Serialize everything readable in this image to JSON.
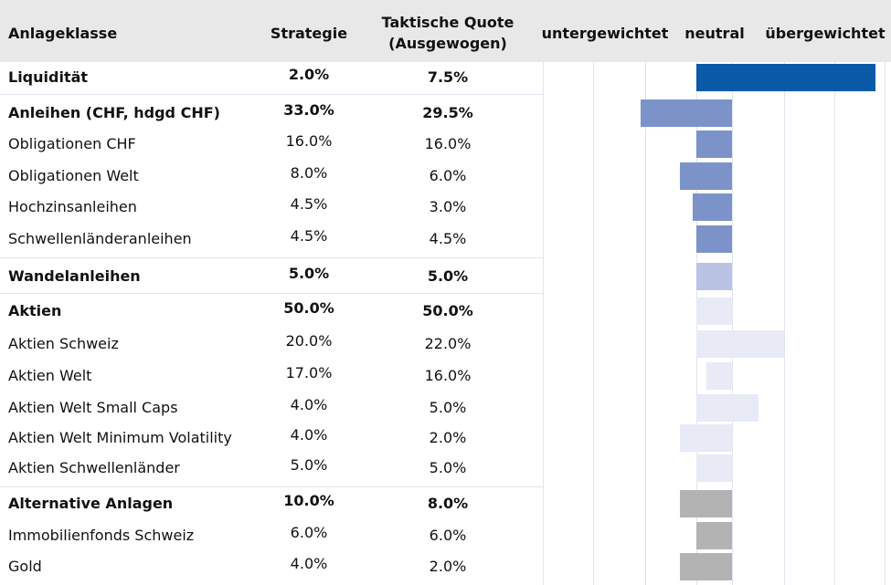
{
  "header": {
    "asset_class": "Anlageklasse",
    "strategy": "Strategie",
    "tactical": "Taktische Quote",
    "tactical_sub": "(Ausgewogen)",
    "under": "untergewichtet",
    "neutral": "neutral",
    "over": "übergewichtet"
  },
  "rows": [
    {
      "name": "Liquidität",
      "bold": true,
      "strategy": 2.0,
      "strategy_label": "2.0%",
      "tactical": 7.5,
      "tactical_label": "7.5%",
      "color": "#0a5aa8"
    },
    {
      "name": "Anleihen (CHF, hdgd CHF)",
      "bold": true,
      "strategy": 33.0,
      "strategy_label": "33.0%",
      "tactical": 29.5,
      "tactical_label": "29.5%",
      "color": "#7b93c8"
    },
    {
      "name": "Obligationen CHF",
      "bold": false,
      "strategy": 16.0,
      "strategy_label": "16.0%",
      "tactical": 16.0,
      "tactical_label": "16.0%",
      "color": "#7b93c8"
    },
    {
      "name": "Obligationen Welt",
      "bold": false,
      "strategy": 8.0,
      "strategy_label": "8.0%",
      "tactical": 6.0,
      "tactical_label": "6.0%",
      "color": "#7b93c8"
    },
    {
      "name": "Hochzinsanleihen",
      "bold": false,
      "strategy": 4.5,
      "strategy_label": "4.5%",
      "tactical": 3.0,
      "tactical_label": "3.0%",
      "color": "#7b93c8"
    },
    {
      "name": "Schwellenländeranleihen",
      "bold": false,
      "strategy": 4.5,
      "strategy_label": "4.5%",
      "tactical": 4.5,
      "tactical_label": "4.5%",
      "color": "#7b93c8"
    },
    {
      "name": "Wandelanleihen",
      "bold": true,
      "strategy": 5.0,
      "strategy_label": "5.0%",
      "tactical": 5.0,
      "tactical_label": "5.0%",
      "color": "#bac3e3"
    },
    {
      "name": "Aktien",
      "bold": true,
      "strategy": 50.0,
      "strategy_label": "50.0%",
      "tactical": 50.0,
      "tactical_label": "50.0%",
      "color": "#e8eaf6"
    },
    {
      "name": "Aktien Schweiz",
      "bold": false,
      "strategy": 20.0,
      "strategy_label": "20.0%",
      "tactical": 22.0,
      "tactical_label": "22.0%",
      "color": "#e8eaf6"
    },
    {
      "name": "Aktien Welt",
      "bold": false,
      "strategy": 17.0,
      "strategy_label": "17.0%",
      "tactical": 16.0,
      "tactical_label": "16.0%",
      "color": "#e8eaf6"
    },
    {
      "name": "Aktien Welt Small Caps",
      "bold": false,
      "strategy": 4.0,
      "strategy_label": "4.0%",
      "tactical": 5.0,
      "tactical_label": "5.0%",
      "color": "#e8eaf6"
    },
    {
      "name": "Aktien Welt Minimum Volatility",
      "bold": false,
      "strategy": 4.0,
      "strategy_label": "4.0%",
      "tactical": 2.0,
      "tactical_label": "2.0%",
      "color": "#e8eaf6"
    },
    {
      "name": "Aktien Schwellenländer",
      "bold": false,
      "strategy": 5.0,
      "strategy_label": "5.0%",
      "tactical": 5.0,
      "tactical_label": "5.0%",
      "color": "#e8eaf6"
    },
    {
      "name": "Alternative Anlagen",
      "bold": true,
      "strategy": 10.0,
      "strategy_label": "10.0%",
      "tactical": 8.0,
      "tactical_label": "8.0%",
      "color": "#b3b3b3"
    },
    {
      "name": "Immobilienfonds Schweiz",
      "bold": false,
      "strategy": 6.0,
      "strategy_label": "6.0%",
      "tactical": 6.0,
      "tactical_label": "6.0%",
      "color": "#b3b3b3"
    },
    {
      "name": "Gold",
      "bold": false,
      "strategy": 4.0,
      "strategy_label": "4.0%",
      "tactical": 2.0,
      "tactical_label": "2.0%",
      "color": "#b3b3b3"
    }
  ]
}
